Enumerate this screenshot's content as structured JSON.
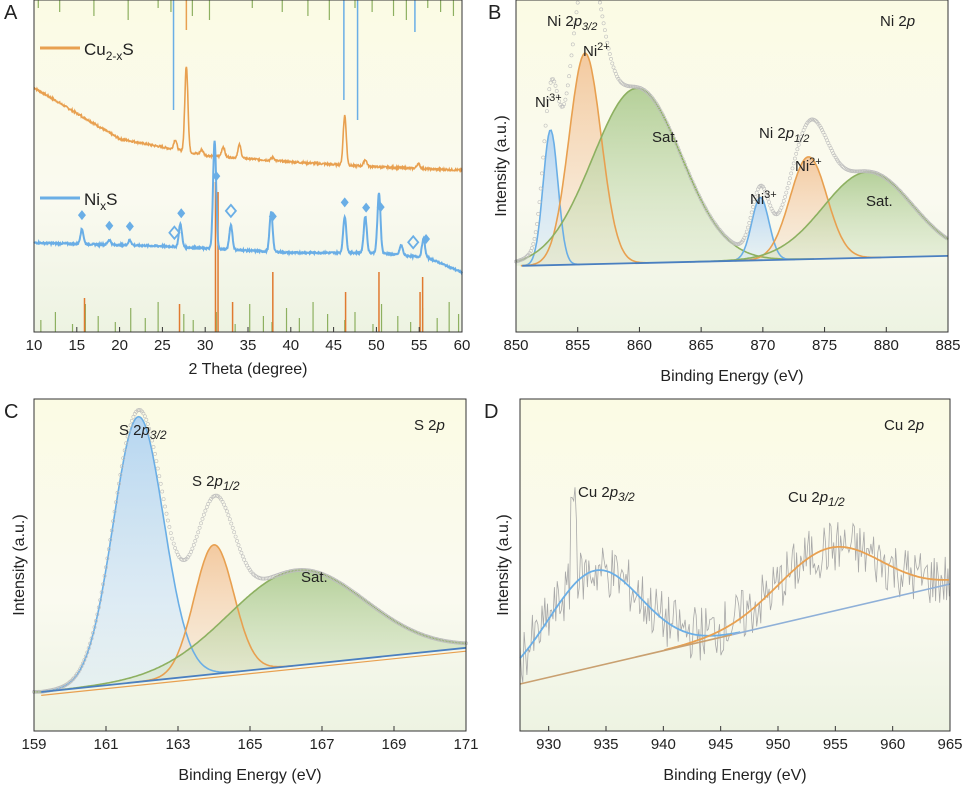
{
  "colors": {
    "orange": "#e8a050",
    "blue": "#6aaee6",
    "green": "#8db060",
    "gray": "#b8b8b8",
    "bg_top": "#fbfbe6",
    "bg_bottom": "#eef4e4"
  },
  "chart_data": [
    {
      "panel": "A",
      "type": "line",
      "xlabel": "2 Theta (degree)",
      "ylabel": "",
      "xlim": [
        10,
        60
      ],
      "xticks": [
        10,
        15,
        20,
        25,
        30,
        35,
        40,
        45,
        50,
        55,
        60
      ],
      "legend": [
        "Cu2-xS",
        "NixS"
      ],
      "series": [
        {
          "name": "Cu2-xS",
          "baseline": [
            [
              10,
              0.62
            ],
            [
              20,
              0.31
            ],
            [
              30,
              0.21
            ],
            [
              40,
              0.17
            ],
            [
              50,
              0.14
            ],
            [
              60,
              0.12
            ]
          ],
          "peaks": [
            [
              26.5,
              0.06
            ],
            [
              27.8,
              0.52
            ],
            [
              29.6,
              0.03
            ],
            [
              32.1,
              0.06
            ],
            [
              34.0,
              0.08
            ],
            [
              37.9,
              0.02
            ],
            [
              46.3,
              0.3
            ],
            [
              48.7,
              0.04
            ],
            [
              54.9,
              0.03
            ]
          ]
        },
        {
          "name": "NixS",
          "baseline": [
            [
              10,
              -0.32
            ],
            [
              25,
              -0.34
            ],
            [
              40,
              -0.38
            ],
            [
              50,
              -0.38
            ],
            [
              56,
              -0.41
            ],
            [
              60,
              -0.5
            ]
          ],
          "peaks": [
            [
              15.6,
              0.09
            ],
            [
              18.8,
              0.03
            ],
            [
              21.2,
              0.03
            ],
            [
              27.1,
              0.14
            ],
            [
              31.1,
              0.66
            ],
            [
              33.0,
              0.15
            ],
            [
              37.7,
              0.24
            ],
            [
              46.3,
              0.22
            ],
            [
              48.7,
              0.22
            ],
            [
              50.3,
              0.36
            ],
            [
              52.9,
              0.06
            ],
            [
              55.5,
              0.11
            ]
          ]
        }
      ],
      "markers": {
        "filled_diamond": [
          15.6,
          18.8,
          21.2,
          27.2,
          31.3,
          37.9,
          46.3,
          48.8,
          50.5,
          55.8
        ],
        "open_diamond": [
          26.4,
          33.0,
          54.3
        ]
      },
      "reference_lines": {
        "top_green": [
          10.5,
          13.0,
          17.0,
          21.0,
          24.5,
          26.0,
          28.5,
          30.5,
          35.5,
          39.0,
          42.0,
          44.5,
          47.5,
          49.5,
          52.0,
          53.5,
          56.0,
          57.5,
          59.0
        ],
        "top_blue": [
          26.3,
          46.2,
          47.8,
          54.5
        ],
        "bottom_green": [
          10.8,
          12.5,
          14.5,
          16.0,
          17.5,
          19.5,
          21.3,
          23.0,
          24.5,
          27.5,
          28.6,
          31.3,
          33.5,
          35.2,
          36.8,
          37.8,
          39.5,
          41.0,
          42.6,
          44.3,
          46.3,
          47.5,
          49.6,
          50.6,
          52.5,
          54.0,
          55.4,
          57.1,
          58.5,
          59.6
        ],
        "bottom_orange": [
          15.9,
          27.0,
          31.2,
          31.5,
          33.2,
          37.9,
          46.4,
          50.3,
          55.1,
          55.4
        ]
      }
    },
    {
      "panel": "B",
      "type": "area",
      "title": "Ni 2p",
      "xlabel": "Binding Energy (eV)",
      "ylabel": "Intensity (a.u.)",
      "xlim": [
        850,
        885
      ],
      "xticks": [
        850,
        855,
        860,
        865,
        870,
        875,
        880,
        885
      ],
      "background": [
        [
          850.5,
          0.04
        ],
        [
          885,
          0.07
        ]
      ],
      "components": [
        {
          "label": "Ni3+",
          "center": 852.8,
          "height": 0.41,
          "width": 0.6,
          "color": "blue"
        },
        {
          "label": "Ni2+",
          "center": 855.6,
          "height": 0.64,
          "width": 1.3,
          "color": "orange"
        },
        {
          "label": "Sat.",
          "center": 859.8,
          "height": 0.53,
          "width": 3.6,
          "color": "green"
        },
        {
          "label": "Ni3+",
          "center": 869.8,
          "height": 0.19,
          "width": 0.7,
          "color": "blue"
        },
        {
          "label": "Ni2+",
          "center": 873.7,
          "height": 0.31,
          "width": 1.5,
          "color": "orange"
        },
        {
          "label": "Sat.",
          "center": 878.5,
          "height": 0.26,
          "width": 3.6,
          "color": "green"
        }
      ],
      "annotations": [
        "Ni 2p3/2",
        "Ni2+",
        "Ni3+",
        "Sat.",
        "Ni 2p1/2",
        "Ni2+",
        "Ni3+",
        "Sat."
      ]
    },
    {
      "panel": "C",
      "type": "area",
      "title": "S 2p",
      "xlabel": "Binding Energy (eV)",
      "ylabel": "Intensity (a.u.)",
      "xlim": [
        159,
        171
      ],
      "xticks": [
        159,
        161,
        163,
        165,
        167,
        169,
        171
      ],
      "background": [
        [
          159.2,
          0.0
        ],
        [
          171,
          0.13
        ]
      ],
      "components": [
        {
          "label": "S 2p3/2",
          "center": 161.9,
          "height": 0.78,
          "width": 0.7,
          "color": "blue"
        },
        {
          "label": "S 2p1/2",
          "center": 164.0,
          "height": 0.38,
          "width": 0.55,
          "color": "orange"
        },
        {
          "label": "Sat.",
          "center": 166.3,
          "height": 0.28,
          "width": 1.9,
          "color": "green"
        }
      ],
      "annotations": [
        "S 2p3/2",
        "S 2p1/2",
        "Sat."
      ]
    },
    {
      "panel": "D",
      "type": "line",
      "title": "Cu 2p",
      "xlabel": "Binding Energy (eV)",
      "ylabel": "Intensity (a.u.)",
      "xlim": [
        927.5,
        965
      ],
      "xticks": [
        930,
        935,
        940,
        945,
        950,
        955,
        960,
        965
      ],
      "background": [
        [
          927.5,
          0.09
        ],
        [
          965,
          0.34
        ]
      ],
      "components": [
        {
          "label": "Cu 2p3/2",
          "center": 934.0,
          "height": 0.24,
          "width": 4.0,
          "color": "blue"
        },
        {
          "label": "Cu 2p1/2",
          "center": 954.5,
          "height": 0.16,
          "width": 4.5,
          "color": "orange"
        }
      ],
      "annotations": [
        "Cu 2p3/2",
        "Cu 2p1/2"
      ]
    }
  ],
  "labels": {
    "A": {
      "panel": "A",
      "legend1": "Cu",
      "legend1_sub": "2-x",
      "legend1_tail": "S",
      "legend2": "Ni",
      "legend2_sub": "x",
      "legend2_tail": "S",
      "xlabel": "2 Theta (degree)"
    },
    "B": {
      "panel": "B",
      "title": "Ni 2",
      "title_it": "p",
      "ylabel": "Intensity (a.u.)",
      "xlabel": "Binding Energy (eV)",
      "peak_a": "Ni 2",
      "peak_a_it": "p",
      "peak_a_sub": "3/2",
      "peak_b": "Ni 2",
      "peak_b_it": "p",
      "peak_b_sub": "1/2",
      "ni2": "Ni",
      "ni2_sup": "2+",
      "ni3": "Ni",
      "ni3_sup": "3+",
      "sat": "Sat."
    },
    "C": {
      "panel": "C",
      "title": "S 2",
      "title_it": "p",
      "ylabel": "Intensity (a.u.)",
      "xlabel": "Binding Energy (eV)",
      "peak_a": "S 2",
      "peak_a_it": "p",
      "peak_a_sub": "3/2",
      "peak_b": "S 2",
      "peak_b_it": "p",
      "peak_b_sub": "1/2",
      "sat": "Sat."
    },
    "D": {
      "panel": "D",
      "title": "Cu 2",
      "title_it": "p",
      "ylabel": "Intensity (a.u.)",
      "xlabel": "Binding Energy (eV)",
      "peak_a": "Cu 2",
      "peak_a_it": "p",
      "peak_a_sub": "3/2",
      "peak_b": "Cu 2",
      "peak_b_it": "p",
      "peak_b_sub": "1/2"
    }
  }
}
